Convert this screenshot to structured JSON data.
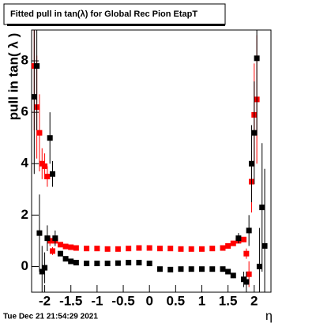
{
  "chart_data": {
    "type": "scatter",
    "title": "Fitted pull in tan(λ) for Global Rec Pion EtapT",
    "y_label": "pull in tan( λ )",
    "x_label": "η",
    "timestamp": "Tue Dec 21 21:54:29 2021",
    "x": [
      -2.2,
      -2.15,
      -2.1,
      -2.05,
      -2.0,
      -1.95,
      -1.9,
      -1.85,
      -1.8,
      -1.7,
      -1.6,
      -1.5,
      -1.4,
      -1.2,
      -1.0,
      -0.8,
      -0.6,
      -0.4,
      -0.2,
      0,
      0.2,
      0.4,
      0.6,
      0.8,
      1.0,
      1.2,
      1.4,
      1.5,
      1.6,
      1.7,
      1.8,
      1.85,
      1.9,
      1.95,
      2.0,
      2.05,
      2.1,
      2.15,
      2.2
    ],
    "series": [
      {
        "color": "#ff0000",
        "values": [
          7.8,
          6.2,
          5.2,
          4.0,
          3.9,
          3.5,
          1.0,
          0.6,
          1.0,
          0.85,
          0.78,
          0.75,
          0.72,
          0.7,
          0.7,
          0.68,
          0.68,
          0.7,
          0.72,
          0.72,
          0.7,
          0.7,
          0.68,
          0.68,
          0.68,
          0.7,
          0.72,
          0.8,
          0.9,
          1.0,
          1.05,
          0.5,
          -0.3,
          3.3,
          5.9,
          6.5,
          null,
          null,
          null
        ],
        "errors": [
          2.5,
          2.0,
          1.5,
          0.6,
          0.5,
          0.4,
          0.2,
          0.15,
          0.1,
          0.06,
          0.05,
          0.05,
          0.04,
          0.04,
          0.04,
          0.04,
          0.04,
          0.04,
          0.04,
          0.04,
          0.04,
          0.04,
          0.04,
          0.04,
          0.04,
          0.04,
          0.05,
          0.05,
          0.06,
          0.08,
          0.1,
          0.2,
          0.5,
          1.2,
          2.0,
          2.5,
          null,
          null,
          null
        ]
      },
      {
        "color": "#000000",
        "values": [
          6.6,
          7.8,
          1.3,
          -0.2,
          -0.05,
          1.1,
          5.0,
          3.6,
          1.1,
          0.5,
          0.3,
          0.2,
          0.15,
          0.12,
          0.12,
          0.12,
          0.13,
          0.15,
          0.15,
          0.12,
          -0.1,
          -0.12,
          -0.1,
          -0.1,
          -0.1,
          -0.1,
          -0.1,
          -0.2,
          -0.35,
          1.1,
          -0.5,
          -0.6,
          1.4,
          4.0,
          5.2,
          8.1,
          0.0,
          2.3,
          0.8
        ],
        "errors": [
          3.0,
          2.5,
          1.5,
          1.0,
          0.6,
          0.5,
          1.0,
          0.5,
          0.3,
          0.1,
          0.06,
          0.05,
          0.04,
          0.04,
          0.04,
          0.04,
          0.04,
          0.04,
          0.04,
          0.04,
          0.04,
          0.04,
          0.04,
          0.04,
          0.04,
          0.04,
          0.05,
          0.06,
          0.1,
          0.2,
          0.3,
          0.4,
          0.6,
          1.5,
          2.0,
          3.0,
          1.5,
          2.5,
          3.0
        ]
      }
    ],
    "xlim": [
      -2.25,
      2.32
    ],
    "ylim": [
      -1,
      9.2
    ],
    "xticks": [
      -2,
      -1.5,
      -1,
      -0.5,
      0,
      0.5,
      1,
      1.5,
      2
    ],
    "yticks": [
      0,
      2,
      4,
      6,
      8
    ]
  }
}
